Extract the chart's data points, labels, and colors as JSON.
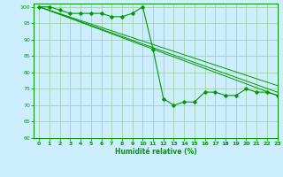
{
  "xlabel": "Humidité relative (%)",
  "bg_color": "#cceeff",
  "grid_color": "#99cc99",
  "line_color": "#009900",
  "xlim": [
    -0.5,
    23
  ],
  "ylim": [
    60,
    101
  ],
  "xticks": [
    0,
    1,
    2,
    3,
    4,
    5,
    6,
    7,
    8,
    9,
    10,
    11,
    12,
    13,
    14,
    15,
    16,
    17,
    18,
    19,
    20,
    21,
    22,
    23
  ],
  "yticks": [
    60,
    65,
    70,
    75,
    80,
    85,
    90,
    95,
    100
  ],
  "line1_x": [
    0,
    1,
    2,
    3,
    4,
    5,
    6,
    7,
    8,
    9,
    10,
    11,
    12,
    13,
    14,
    15,
    16,
    17,
    18,
    19,
    20,
    21,
    22,
    23
  ],
  "line1_y": [
    100,
    100,
    99,
    98,
    98,
    98,
    98,
    97,
    97,
    98,
    100,
    87,
    72,
    70,
    71,
    71,
    74,
    74,
    73,
    73,
    75,
    74,
    74,
    73
  ],
  "line2_x": [
    0,
    23
  ],
  "line2_y": [
    100,
    74
  ],
  "line3_x": [
    0,
    23
  ],
  "line3_y": [
    100,
    76
  ],
  "line4_x": [
    0,
    23
  ],
  "line4_y": [
    100,
    73
  ]
}
